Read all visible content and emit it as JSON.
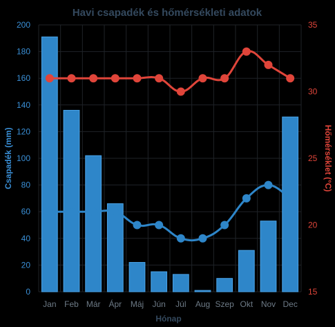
{
  "colors": {
    "background": "#000000",
    "grid": "#1f2328",
    "title": "#34495e",
    "xlabel": "#34495e",
    "left_axis": "#3a8fd6",
    "right_axis": "#e0453a",
    "x_ticks": "#6d7a86",
    "bars": "#2e86c9",
    "bar_border": "#4aa3e8",
    "precip_line": "#2e86c9",
    "temp_line": "#e0453a"
  },
  "chart_data": {
    "type": "bar",
    "title": "Havi csapadék és hőmérsékleti adatok",
    "xlabel": "Hónap",
    "ylabel": "Csapadék (mm)",
    "y2label": "Hőmérséklet (°C)",
    "categories": [
      "Jan",
      "Feb",
      "Már",
      "Ápr",
      "Máj",
      "Jún",
      "Júl",
      "Aug",
      "Szep",
      "Okt",
      "Nov",
      "Dec"
    ],
    "ylim": [
      0,
      200
    ],
    "y_ticks": [
      "0",
      "20",
      "40",
      "60",
      "80",
      "100",
      "120",
      "140",
      "160",
      "180",
      "200"
    ],
    "y2lim": [
      15,
      35
    ],
    "y2_ticks": [
      "15",
      "20",
      "25",
      "30",
      "35"
    ],
    "grid": true,
    "series": [
      {
        "type": "bar",
        "axis": "left",
        "values": [
          191,
          136,
          102,
          66,
          22,
          15,
          13,
          1,
          10,
          31,
          53,
          131
        ]
      },
      {
        "type": "line",
        "axis": "left",
        "values": [
          60,
          60,
          60,
          60,
          50,
          50,
          40,
          40,
          50,
          70,
          80,
          70
        ]
      },
      {
        "type": "line",
        "axis": "right",
        "values": [
          31,
          31,
          31,
          31,
          31,
          31,
          30,
          31,
          31,
          33,
          32,
          31
        ]
      }
    ]
  }
}
